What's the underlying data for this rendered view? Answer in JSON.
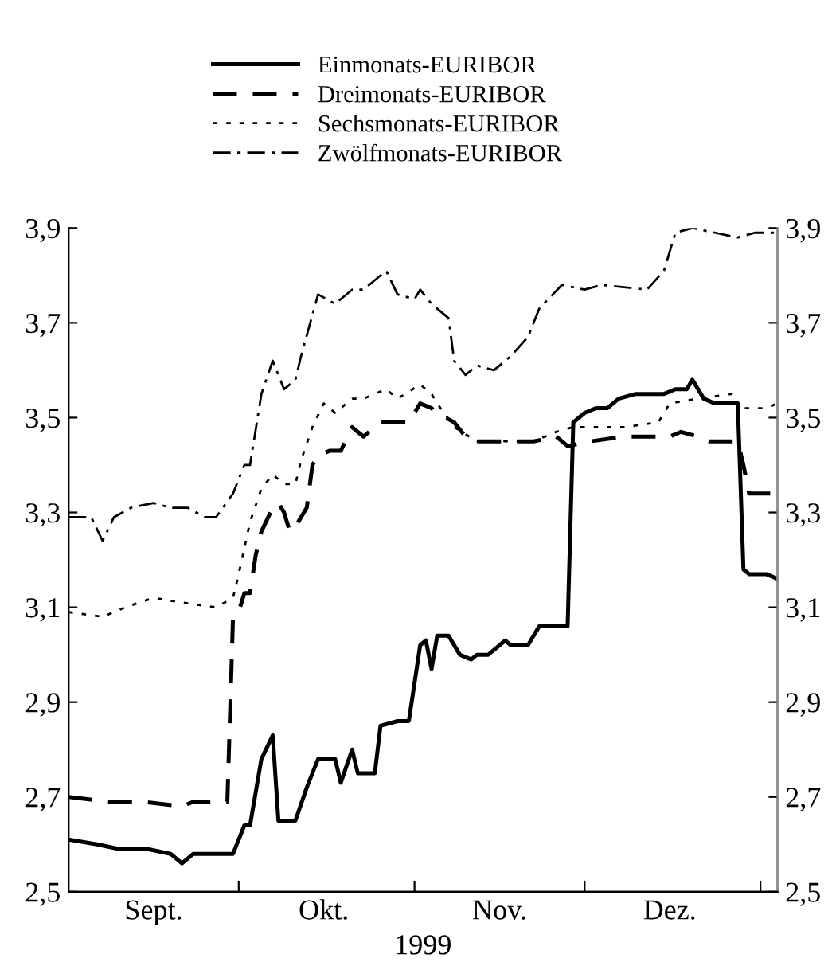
{
  "chart_data": {
    "type": "line",
    "xlabel": "1999",
    "legend": "top",
    "grid": false,
    "marker": "none",
    "xlim": [
      "1999-09-01",
      "2000-01-04"
    ],
    "xticks": [
      {
        "value": "1999-10-01",
        "label": null
      },
      {
        "value": "1999-11-01",
        "label": null
      },
      {
        "value": "1999-12-01",
        "label": null
      },
      {
        "value": "2000-01-01",
        "label": null
      },
      {
        "value": "1999-09-16",
        "label": "Sept."
      },
      {
        "value": "1999-10-16",
        "label": "Okt."
      },
      {
        "value": "1999-11-16",
        "label": "Nov."
      },
      {
        "value": "1999-12-16",
        "label": "Dez."
      }
    ],
    "ylim": [
      2.5,
      3.9
    ],
    "yticks": [
      {
        "value": 2.5,
        "label": "2,5"
      },
      {
        "value": 2.7,
        "label": "2,7"
      },
      {
        "value": 2.9,
        "label": "2,9"
      },
      {
        "value": 3.1,
        "label": "3,1"
      },
      {
        "value": 3.3,
        "label": "3,3"
      },
      {
        "value": 3.5,
        "label": "3,5"
      },
      {
        "value": 3.7,
        "label": "3,7"
      },
      {
        "value": 3.9,
        "label": "3,9"
      }
    ],
    "y2lim": [
      2.5,
      3.9
    ],
    "y2ticks": [
      {
        "value": 2.5,
        "label": "2,5"
      },
      {
        "value": 2.7,
        "label": "2,7"
      },
      {
        "value": 2.9,
        "label": "2,9"
      },
      {
        "value": 3.1,
        "label": "3,1"
      },
      {
        "value": 3.3,
        "label": "3,3"
      },
      {
        "value": 3.5,
        "label": "3,5"
      },
      {
        "value": 3.7,
        "label": "3,7"
      },
      {
        "value": 3.9,
        "label": "3,9"
      }
    ],
    "series": [
      {
        "name": "Einmonats-EURIBOR",
        "color": "#000000",
        "line_style": "solid",
        "x": [
          "1999-09-01",
          "1999-09-06",
          "1999-09-10",
          "1999-09-15",
          "1999-09-19",
          "1999-09-21",
          "1999-09-23",
          "1999-09-28",
          "1999-09-30",
          "1999-10-02",
          "1999-10-03",
          "1999-10-05",
          "1999-10-07",
          "1999-10-08",
          "1999-10-11",
          "1999-10-13",
          "1999-10-15",
          "1999-10-18",
          "1999-10-19",
          "1999-10-21",
          "1999-10-22",
          "1999-10-25",
          "1999-10-26",
          "1999-10-29",
          "1999-10-31",
          "1999-11-02",
          "1999-11-03",
          "1999-11-04",
          "1999-11-05",
          "1999-11-07",
          "1999-11-09",
          "1999-11-11",
          "1999-11-12",
          "1999-11-14",
          "1999-11-17",
          "1999-11-18",
          "1999-11-21",
          "1999-11-23",
          "1999-11-25",
          "1999-11-28",
          "1999-11-29",
          "1999-12-01",
          "1999-12-03",
          "1999-12-05",
          "1999-12-07",
          "1999-12-10",
          "1999-12-15",
          "1999-12-17",
          "1999-12-19",
          "1999-12-20",
          "1999-12-22",
          "1999-12-24",
          "1999-12-27",
          "1999-12-28",
          "1999-12-29",
          "1999-12-30",
          "2000-01-02",
          "2000-01-04"
        ],
        "values": [
          2.61,
          2.6,
          2.59,
          2.59,
          2.58,
          2.56,
          2.58,
          2.58,
          2.58,
          2.64,
          2.64,
          2.78,
          2.83,
          2.65,
          2.65,
          2.72,
          2.78,
          2.78,
          2.73,
          2.8,
          2.75,
          2.75,
          2.85,
          2.86,
          2.86,
          3.02,
          3.03,
          2.97,
          3.04,
          3.04,
          3.0,
          2.99,
          3.0,
          3.0,
          3.03,
          3.02,
          3.02,
          3.06,
          3.06,
          3.06,
          3.49,
          3.51,
          3.52,
          3.52,
          3.54,
          3.55,
          3.55,
          3.56,
          3.56,
          3.58,
          3.54,
          3.53,
          3.53,
          3.53,
          3.18,
          3.17,
          3.17,
          3.16
        ]
      },
      {
        "name": "Dreimonats-EURIBOR",
        "color": "#000000",
        "line_style": "dashed",
        "x": [
          "1999-09-01",
          "1999-09-08",
          "1999-09-14",
          "1999-09-21",
          "1999-09-23",
          "1999-09-27",
          "1999-09-29",
          "1999-09-30",
          "1999-10-01",
          "1999-10-02",
          "1999-10-03",
          "1999-10-04",
          "1999-10-05",
          "1999-10-07",
          "1999-10-08",
          "1999-10-09",
          "1999-10-10",
          "1999-10-11",
          "1999-10-13",
          "1999-10-14",
          "1999-10-15",
          "1999-10-17",
          "1999-10-19",
          "1999-10-21",
          "1999-10-23",
          "1999-10-26",
          "1999-10-29",
          "1999-10-31",
          "1999-11-02",
          "1999-11-04",
          "1999-11-05",
          "1999-11-08",
          "1999-11-10",
          "1999-11-12",
          "1999-11-18",
          "1999-11-22",
          "1999-11-26",
          "1999-11-28",
          "1999-12-02",
          "1999-12-08",
          "1999-12-12",
          "1999-12-16",
          "1999-12-18",
          "1999-12-21",
          "1999-12-23",
          "1999-12-25",
          "1999-12-28",
          "1999-12-29",
          "1999-12-30",
          "2000-01-02",
          "2000-01-04"
        ],
        "values": [
          2.7,
          2.69,
          2.69,
          2.68,
          2.69,
          2.69,
          2.69,
          3.08,
          3.09,
          3.13,
          3.13,
          3.21,
          3.26,
          3.31,
          3.32,
          3.3,
          3.26,
          3.27,
          3.31,
          3.4,
          3.42,
          3.43,
          3.43,
          3.48,
          3.46,
          3.49,
          3.49,
          3.49,
          3.53,
          3.52,
          3.51,
          3.49,
          3.46,
          3.45,
          3.45,
          3.45,
          3.46,
          3.44,
          3.45,
          3.46,
          3.46,
          3.46,
          3.47,
          3.46,
          3.45,
          3.45,
          3.45,
          3.4,
          3.34,
          3.34,
          3.34
        ]
      },
      {
        "name": "Sechsmonats-EURIBOR",
        "color": "#000000",
        "line_style": "dotted",
        "x": [
          "1999-09-01",
          "1999-09-07",
          "1999-09-11",
          "1999-09-16",
          "1999-09-21",
          "1999-09-27",
          "1999-09-30",
          "1999-10-01",
          "1999-10-03",
          "1999-10-05",
          "1999-10-07",
          "1999-10-09",
          "1999-10-11",
          "1999-10-12",
          "1999-10-14",
          "1999-10-16",
          "1999-10-18",
          "1999-10-21",
          "1999-10-23",
          "1999-10-27",
          "1999-10-29",
          "1999-11-02",
          "1999-11-04",
          "1999-11-05",
          "1999-11-08",
          "1999-11-12",
          "1999-11-22",
          "1999-11-26",
          "1999-11-29",
          "1999-12-08",
          "1999-12-14",
          "1999-12-16",
          "1999-12-21",
          "1999-12-27",
          "1999-12-28",
          "2000-01-02",
          "2000-01-04"
        ],
        "values": [
          3.09,
          3.08,
          3.1,
          3.12,
          3.11,
          3.1,
          3.12,
          3.17,
          3.28,
          3.35,
          3.38,
          3.36,
          3.36,
          3.41,
          3.48,
          3.53,
          3.51,
          3.54,
          3.54,
          3.56,
          3.54,
          3.57,
          3.55,
          3.53,
          3.48,
          3.45,
          3.45,
          3.47,
          3.48,
          3.48,
          3.49,
          3.53,
          3.54,
          3.55,
          3.52,
          3.52,
          3.53
        ]
      },
      {
        "name": "Zwölfmonats-EURIBOR",
        "color": "#000000",
        "line_style": "dashdot",
        "x": [
          "1999-09-01",
          "1999-09-05",
          "1999-09-07",
          "1999-09-09",
          "1999-09-12",
          "1999-09-16",
          "1999-09-19",
          "1999-09-22",
          "1999-09-25",
          "1999-09-27",
          "1999-09-30",
          "1999-10-02",
          "1999-10-03",
          "1999-10-05",
          "1999-10-07",
          "1999-10-09",
          "1999-10-11",
          "1999-10-12",
          "1999-10-15",
          "1999-10-18",
          "1999-10-21",
          "1999-10-23",
          "1999-10-27",
          "1999-10-29",
          "1999-11-01",
          "1999-11-02",
          "1999-11-04",
          "1999-11-07",
          "1999-11-08",
          "1999-11-10",
          "1999-11-12",
          "1999-11-15",
          "1999-11-18",
          "1999-11-21",
          "1999-11-23",
          "1999-11-27",
          "1999-12-01",
          "1999-12-04",
          "1999-12-12",
          "1999-12-15",
          "1999-12-17",
          "1999-12-20",
          "1999-12-24",
          "1999-12-28",
          "1999-12-31",
          "2000-01-04"
        ],
        "values": [
          3.29,
          3.29,
          3.24,
          3.29,
          3.31,
          3.32,
          3.31,
          3.31,
          3.29,
          3.29,
          3.34,
          3.4,
          3.4,
          3.55,
          3.62,
          3.56,
          3.58,
          3.63,
          3.76,
          3.74,
          3.77,
          3.77,
          3.81,
          3.76,
          3.75,
          3.77,
          3.74,
          3.71,
          3.62,
          3.59,
          3.61,
          3.6,
          3.63,
          3.67,
          3.73,
          3.78,
          3.77,
          3.78,
          3.77,
          3.81,
          3.89,
          3.9,
          3.89,
          3.88,
          3.89,
          3.89
        ]
      }
    ]
  }
}
